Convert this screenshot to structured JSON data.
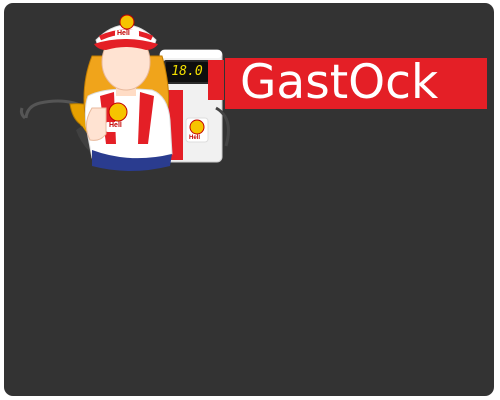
{
  "app": {
    "brand_name": "GastOck"
  },
  "logo": {
    "pump_display_value": "18.0",
    "cap_badge_text": "Hell",
    "shirt_badge_text": "Hell",
    "pump_badge_text": "Hell"
  },
  "colors": {
    "background": "#333333",
    "brand_red": "#e41f26",
    "brand_text": "#ffffff",
    "display_digits": "#f4e000",
    "badge_yellow": "#f6c400"
  },
  "icons": {
    "mascot": "gas-station-attendant-icon",
    "nozzle": "fuel-nozzle-icon",
    "pump": "fuel-pump-icon"
  }
}
